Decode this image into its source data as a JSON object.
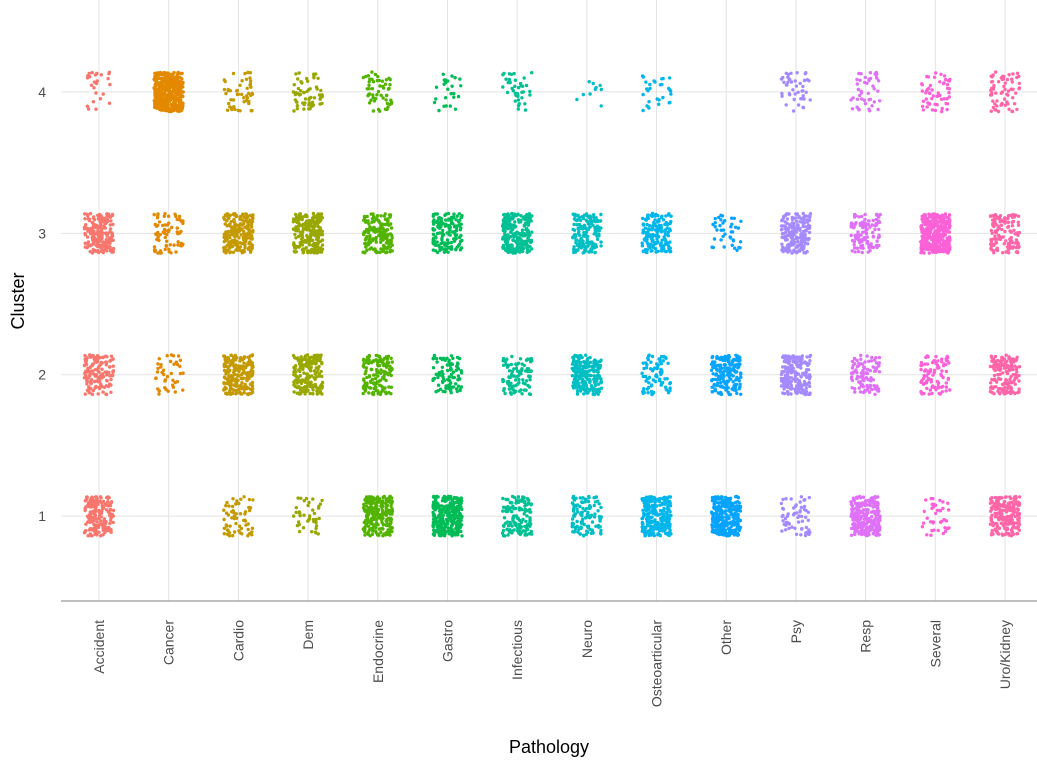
{
  "chart_data": {
    "type": "scatter",
    "jitter": true,
    "xlabel": "Pathology",
    "ylabel": "Cluster",
    "ylim": [
      0.4,
      4.65
    ],
    "y_ticks": [
      "1",
      "2",
      "3",
      "4"
    ],
    "grid": true,
    "legend": "none",
    "categories": [
      "Accident",
      "Cancer",
      "Cardio",
      "Dem",
      "Endocrine",
      "Gastro",
      "Infectious",
      "Neuro",
      "Osteoarticular",
      "Other",
      "Psy",
      "Resp",
      "Several",
      "Uro/Kidney"
    ],
    "colors": [
      "#F8766D",
      "#E38900",
      "#C49A00",
      "#99A800",
      "#53B400",
      "#00BC56",
      "#00C094",
      "#00BFC4",
      "#00B6EB",
      "#06A4FF",
      "#A58AFF",
      "#DF70F8",
      "#FB61D7",
      "#FF66A8"
    ],
    "point_counts": [
      [
        180,
        0,
        60,
        40,
        240,
        300,
        140,
        120,
        240,
        260,
        60,
        250,
        40,
        220
      ],
      [
        140,
        40,
        220,
        180,
        140,
        90,
        100,
        220,
        80,
        180,
        200,
        100,
        90,
        160
      ],
      [
        200,
        70,
        210,
        230,
        160,
        150,
        240,
        160,
        170,
        40,
        190,
        110,
        380,
        130
      ],
      [
        25,
        420,
        50,
        60,
        55,
        25,
        40,
        10,
        30,
        0,
        45,
        45,
        55,
        65
      ]
    ]
  }
}
